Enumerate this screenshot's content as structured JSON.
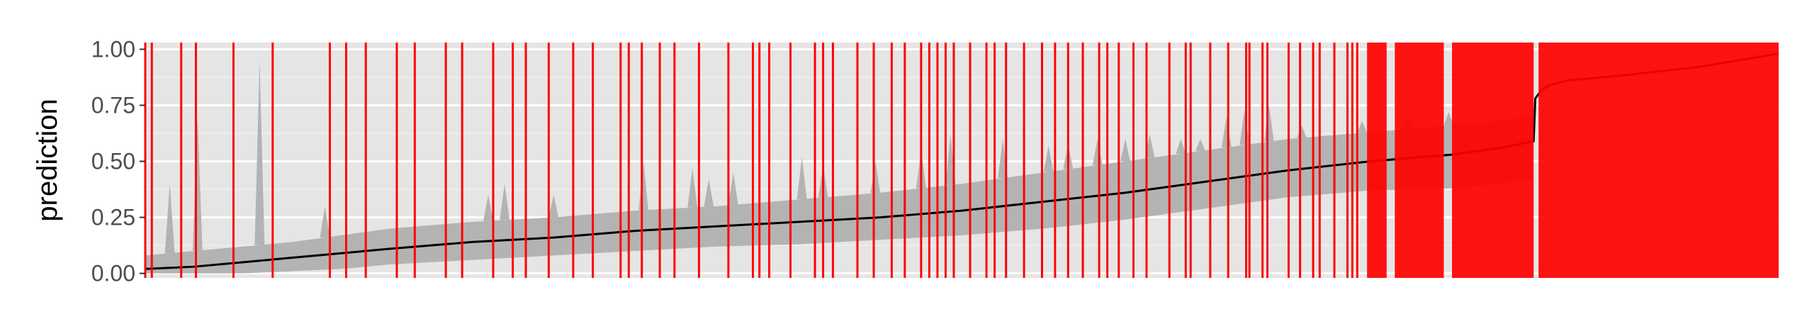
{
  "chart_data": {
    "type": "line",
    "title": "",
    "xlabel": "",
    "ylabel": "prediction",
    "ylim": [
      -0.02,
      1.03
    ],
    "yticks": [
      0.0,
      0.25,
      0.5,
      0.75,
      1.0
    ],
    "ytick_labels": [
      "0.00",
      "0.25",
      "0.50",
      "0.75",
      "1.00"
    ],
    "x_tick_labels_shown": false,
    "grid": true,
    "legend": "none",
    "n_points": 1000,
    "series": [
      {
        "kind": "line",
        "color": "#000000",
        "x": [
          0,
          30,
          60,
          90,
          120,
          150,
          200,
          250,
          300,
          350,
          400,
          450,
          500,
          550,
          600,
          650,
          700,
          750,
          800,
          830,
          850,
          851,
          855,
          860,
          870,
          900,
          950,
          1000
        ],
        "y": [
          0.02,
          0.03,
          0.05,
          0.07,
          0.09,
          0.11,
          0.14,
          0.16,
          0.19,
          0.21,
          0.23,
          0.25,
          0.28,
          0.32,
          0.36,
          0.41,
          0.46,
          0.5,
          0.53,
          0.56,
          0.59,
          0.78,
          0.82,
          0.84,
          0.86,
          0.88,
          0.92,
          0.98
        ]
      }
    ],
    "ribbon": {
      "color": "#b3b3b3",
      "x": [
        0,
        30,
        60,
        90,
        120,
        150,
        200,
        250,
        300,
        350,
        400,
        450,
        500,
        550,
        600,
        650,
        700,
        750,
        800,
        830,
        849
      ],
      "lower": [
        0.0,
        0.0,
        0.0,
        0.01,
        0.02,
        0.04,
        0.06,
        0.08,
        0.1,
        0.12,
        0.13,
        0.15,
        0.17,
        0.2,
        0.24,
        0.29,
        0.34,
        0.37,
        0.38,
        0.4,
        0.42
      ],
      "upper": [
        0.08,
        0.1,
        0.12,
        0.14,
        0.17,
        0.2,
        0.23,
        0.25,
        0.28,
        0.3,
        0.33,
        0.36,
        0.4,
        0.45,
        0.5,
        0.55,
        0.6,
        0.63,
        0.66,
        0.68,
        0.7
      ]
    },
    "ribbon_spikes": [
      {
        "x": 15,
        "y": 0.4
      },
      {
        "x": 32,
        "y": 0.7
      },
      {
        "x": 70,
        "y": 0.95
      },
      {
        "x": 110,
        "y": 0.3
      },
      {
        "x": 210,
        "y": 0.35
      },
      {
        "x": 220,
        "y": 0.4
      },
      {
        "x": 250,
        "y": 0.35
      },
      {
        "x": 305,
        "y": 0.5
      },
      {
        "x": 335,
        "y": 0.47
      },
      {
        "x": 345,
        "y": 0.42
      },
      {
        "x": 360,
        "y": 0.45
      },
      {
        "x": 402,
        "y": 0.52
      },
      {
        "x": 415,
        "y": 0.48
      },
      {
        "x": 447,
        "y": 0.5
      },
      {
        "x": 475,
        "y": 0.55
      },
      {
        "x": 493,
        "y": 0.62
      },
      {
        "x": 525,
        "y": 0.6
      },
      {
        "x": 553,
        "y": 0.57
      },
      {
        "x": 565,
        "y": 0.58
      },
      {
        "x": 583,
        "y": 0.6
      },
      {
        "x": 600,
        "y": 0.6
      },
      {
        "x": 615,
        "y": 0.62
      },
      {
        "x": 634,
        "y": 0.6
      },
      {
        "x": 646,
        "y": 0.6
      },
      {
        "x": 662,
        "y": 0.7
      },
      {
        "x": 673,
        "y": 0.73
      },
      {
        "x": 688,
        "y": 0.75
      },
      {
        "x": 708,
        "y": 0.66
      },
      {
        "x": 745,
        "y": 0.68
      },
      {
        "x": 773,
        "y": 0.7
      },
      {
        "x": 798,
        "y": 0.72
      },
      {
        "x": 822,
        "y": 0.65
      }
    ],
    "red_lines": {
      "color": "#ff0000",
      "dense_regions": [
        [
          748,
          760
        ],
        [
          765,
          795
        ],
        [
          800,
          850
        ],
        [
          853,
          1000
        ]
      ],
      "x": [
        0,
        4,
        22,
        31,
        54,
        78,
        113,
        123,
        135,
        154,
        165,
        184,
        194,
        213,
        225,
        233,
        247,
        262,
        274,
        291,
        296,
        304,
        315,
        324,
        339,
        357,
        372,
        376,
        382,
        395,
        410,
        415,
        421,
        436,
        446,
        457,
        465,
        475,
        480,
        485,
        490,
        495,
        505,
        515,
        520,
        527,
        538,
        549,
        557,
        565,
        574,
        584,
        589,
        596,
        605,
        613,
        627,
        637,
        640,
        652,
        663,
        674,
        676,
        684,
        687,
        700,
        707,
        715,
        719,
        728,
        736,
        739,
        742
      ]
    }
  }
}
